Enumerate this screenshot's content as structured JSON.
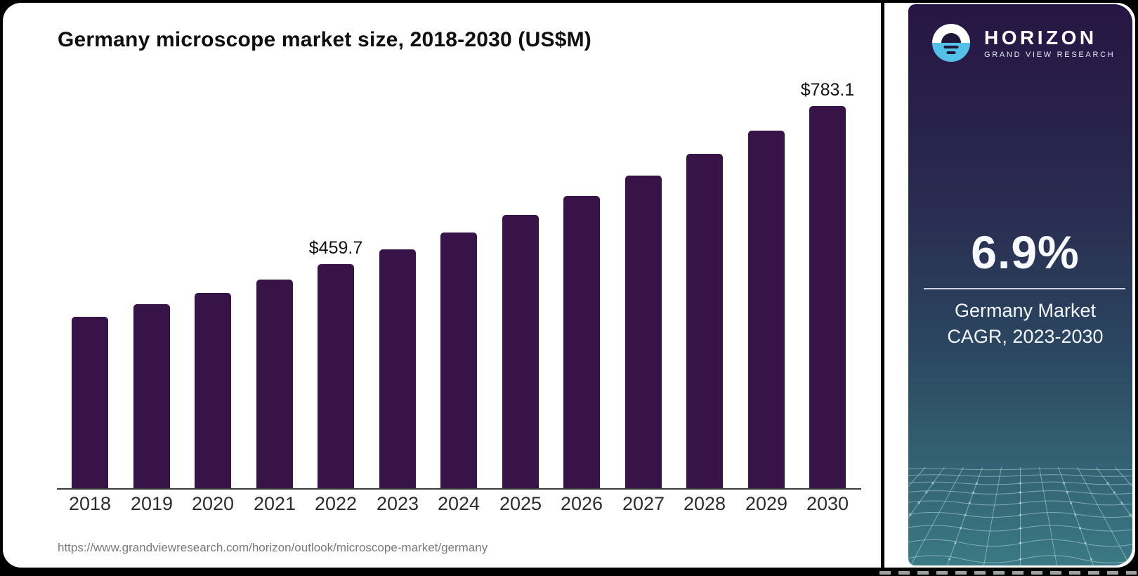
{
  "header": {
    "title": "Germany microscope market size, 2018-2030 (US$M)"
  },
  "chart_data": {
    "type": "bar",
    "title": "Germany microscope market size, 2018-2030 (US$M)",
    "categories": [
      "2018",
      "2019",
      "2020",
      "2021",
      "2022",
      "2023",
      "2024",
      "2025",
      "2026",
      "2027",
      "2028",
      "2029",
      "2030"
    ],
    "values": [
      353,
      379,
      402,
      429,
      459.7,
      490.6,
      524.5,
      560.7,
      599.4,
      640.7,
      685.0,
      732.2,
      783.1
    ],
    "data_labels": [
      {
        "category": "2022",
        "text": "$459.7"
      },
      {
        "category": "2030",
        "text": "$783.1"
      }
    ],
    "bar_color": "#371348",
    "xlabel": "",
    "ylabel": "",
    "ylim": [
      0,
      820
    ],
    "grid": false,
    "legend": false
  },
  "footer": {
    "source_url": "https://www.grandviewresearch.com/horizon/outlook/microscope-market/germany"
  },
  "sidebar": {
    "brand": {
      "name": "HORIZON",
      "subtitle": "GRAND VIEW RESEARCH",
      "icon": "sunrise-horizon-icon",
      "accent_blue": "#54c2e8"
    },
    "stat": {
      "value": "6.9%",
      "label_line1": "Germany Market",
      "label_line2": "CAGR, 2023-2030"
    },
    "colors": {
      "gradient_top": "#271543",
      "gradient_bottom": "#3a7a84"
    }
  }
}
